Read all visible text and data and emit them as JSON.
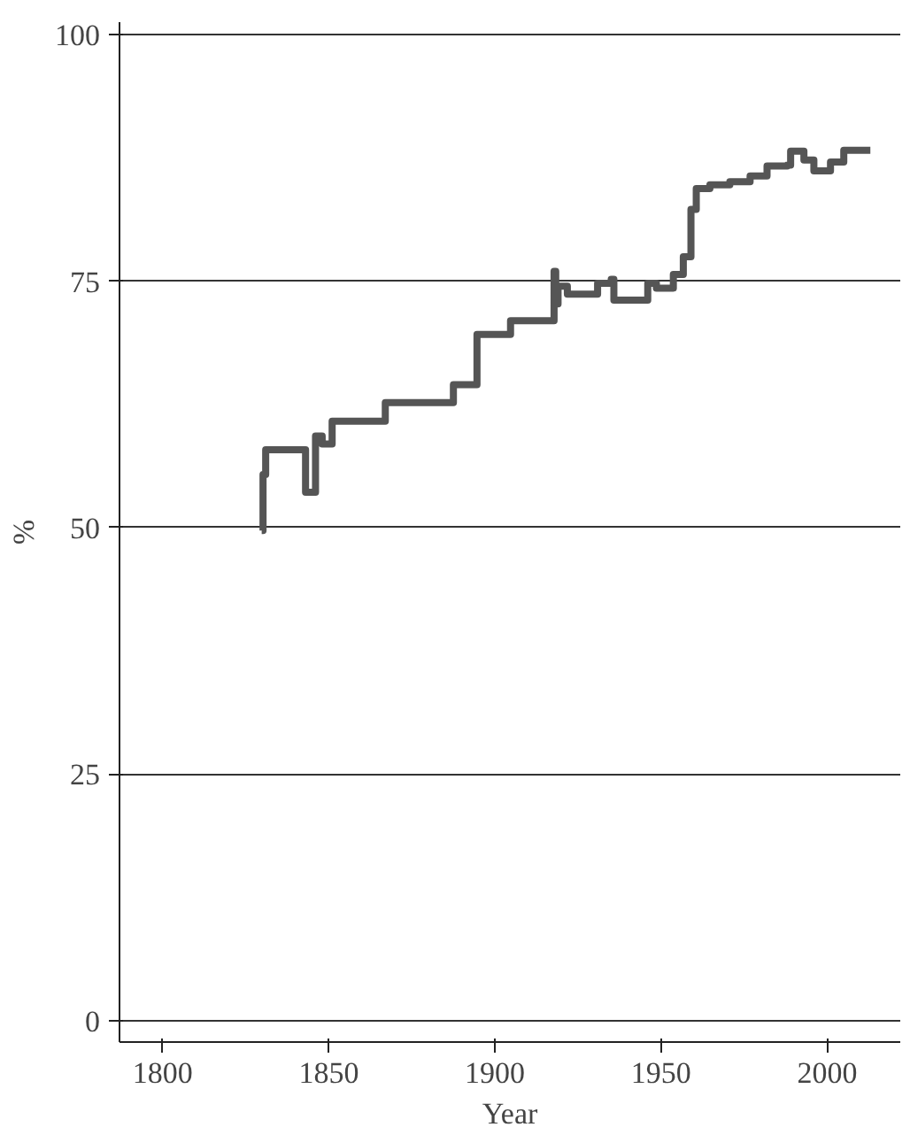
{
  "chart_data": {
    "type": "step",
    "xlabel": "Year",
    "ylabel": "%",
    "xlim": [
      1787,
      2022
    ],
    "ylim": [
      -2.2,
      101.3
    ],
    "xticks": [
      1800,
      1850,
      1900,
      1950,
      2000
    ],
    "yticks": [
      0,
      25,
      50,
      75,
      100
    ],
    "grid": "y",
    "line_style": "solid",
    "series": [
      {
        "color": "#555555",
        "x": [
          1829.8,
          1830.2,
          1831,
          1843,
          1846,
          1848,
          1851,
          1867,
          1887.5,
          1894.6,
          1904.7,
          1917.8,
          1918.3,
          1919,
          1921.8,
          1930.9,
          1935,
          1935.8,
          1946,
          1948.6,
          1953.7,
          1956.7,
          1959,
          1960.6,
          1964.7,
          1970.7,
          1976.8,
          1981.9,
          1988,
          1989,
          1993,
          1996,
          2000,
          2001,
          2005,
          2013
        ],
        "values": [
          49.7,
          55.4,
          57.9,
          53.6,
          59.3,
          58.5,
          60.8,
          62.7,
          64.5,
          69.6,
          71.0,
          76.0,
          72.7,
          74.5,
          73.7,
          74.8,
          75.2,
          73.1,
          74.8,
          74.3,
          75.7,
          77.5,
          82.3,
          84.4,
          84.8,
          85.1,
          85.7,
          86.7,
          86.8,
          88.2,
          87.3,
          86.2,
          86.2,
          87.1,
          88.3,
          88.3
        ]
      }
    ]
  }
}
